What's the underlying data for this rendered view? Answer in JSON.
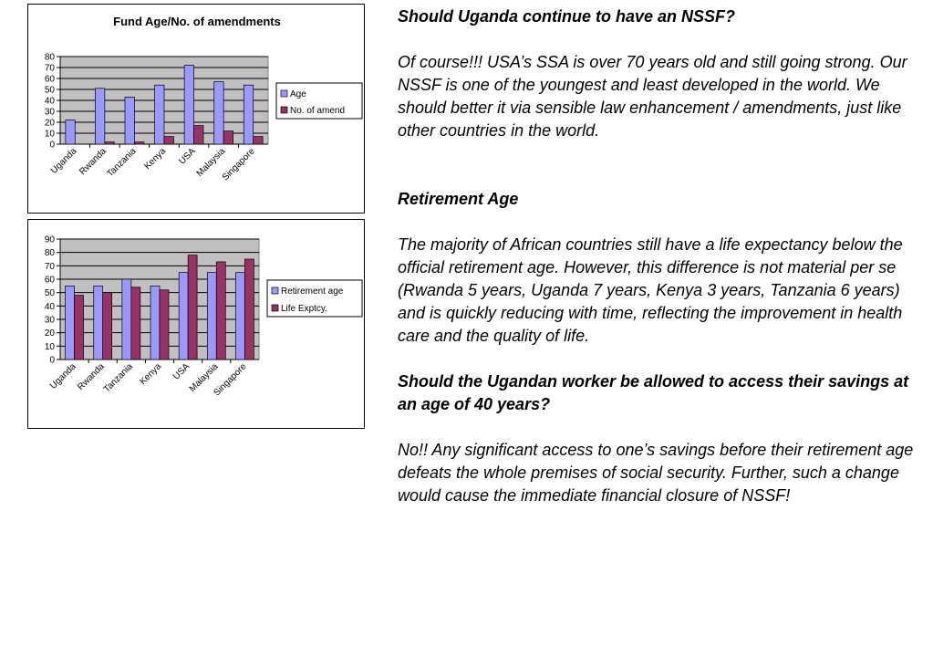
{
  "chart_data": [
    {
      "type": "bar",
      "title": "Fund Age/No. of amendments",
      "categories": [
        "Uganda",
        "Rwanda",
        "Tanzania",
        "Kenya",
        "USA",
        "Malaysia",
        "Singapore"
      ],
      "series": [
        {
          "name": "Age",
          "values": [
            22,
            51,
            43,
            54,
            72,
            57,
            54
          ],
          "color": "#9999ff"
        },
        {
          "name": "No. of amend",
          "values": [
            0,
            2,
            2,
            7,
            17,
            12,
            7
          ],
          "color": "#993366"
        }
      ],
      "ylim": [
        0,
        80
      ],
      "yticks": [
        "0",
        "10",
        "20",
        "30",
        "40",
        "50",
        "60",
        "70",
        "80"
      ],
      "grid": true,
      "plot_bg": "#c0c0c0",
      "legend": "right"
    },
    {
      "type": "bar",
      "title": "",
      "categories": [
        "Uganda",
        "Rwanda",
        "Tanzania",
        "Kenya",
        "USA",
        "Malaysia",
        "Singapore"
      ],
      "series": [
        {
          "name": "Retirement age",
          "values": [
            55,
            55,
            60,
            55,
            65,
            65,
            65
          ],
          "color": "#9999ff"
        },
        {
          "name": "Life Exptcy.",
          "values": [
            48,
            50,
            54,
            52,
            78,
            73,
            75
          ],
          "color": "#993366"
        }
      ],
      "ylim": [
        0,
        90
      ],
      "yticks": [
        "0",
        "10",
        "20",
        "30",
        "40",
        "50",
        "60",
        "70",
        "80",
        "90"
      ],
      "grid": true,
      "plot_bg": "#c0c0c0",
      "legend": "right"
    }
  ],
  "text": {
    "q1_heading": "Should Uganda continue to have an NSSF?",
    "q1_body": "Of course!!! USA’s SSA is over 70 years old and still going strong.  Our NSSF is one of the youngest and least developed in the world.  We should better it via sensible law enhancement / amendments, just like other countries in the world.",
    "q2_heading": "Retirement Age",
    "q2_body": "The majority of African countries still have a life expectancy below the official retirement age.  However, this difference is not material per se (Rwanda 5 years, Uganda 7 years, Kenya 3 years, Tanzania 6 years) and is quickly reducing with time, reflecting the improvement in health care and the quality of life.",
    "q3_heading": "Should the Ugandan worker be allowed to access their savings at an age of 40 years?",
    "q3_body": "No!! Any significant access to one’s savings before their retirement age defeats the whole premises of social security.  Further, such a change would cause the immediate financial closure of NSSF!"
  }
}
